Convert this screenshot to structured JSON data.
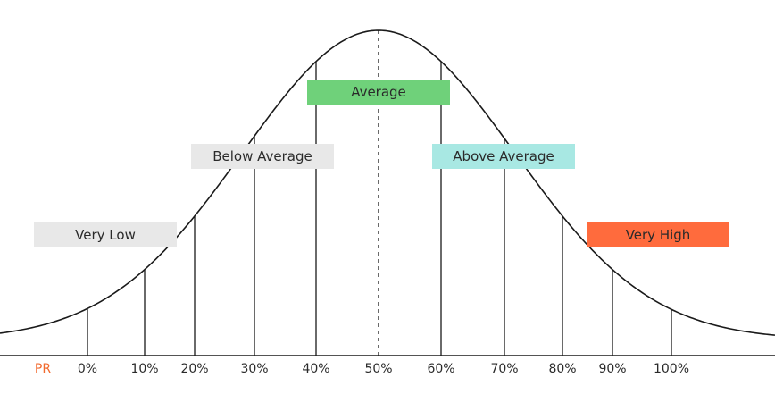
{
  "axis_title": "PR",
  "axis_title_color": "#f26a2e",
  "ticks": [
    "0%",
    "10%",
    "20%",
    "30%",
    "40%",
    "50%",
    "60%",
    "70%",
    "80%",
    "90%",
    "100%"
  ],
  "categories": [
    {
      "label": "Very Low",
      "color": "#e8e8e8"
    },
    {
      "label": "Below Average",
      "color": "#e8e8e8"
    },
    {
      "label": "Average",
      "color": "#6fd17a"
    },
    {
      "label": "Above Average",
      "color": "#a8e8e3"
    },
    {
      "label": "Very High",
      "color": "#ff6b3d"
    }
  ]
}
